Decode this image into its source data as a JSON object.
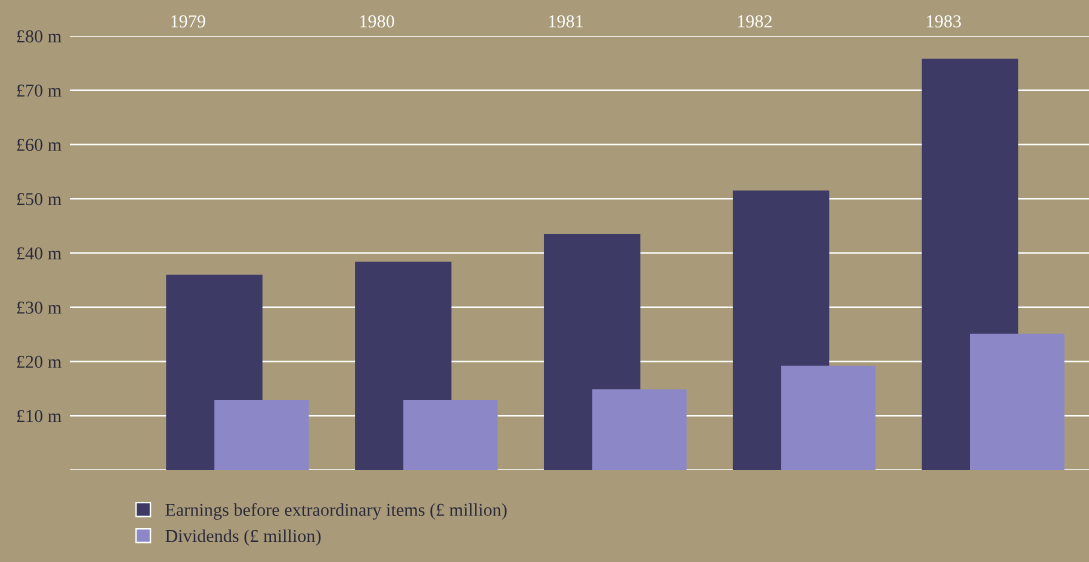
{
  "chart_data": {
    "type": "bar",
    "categories": [
      "1979",
      "1980",
      "1981",
      "1982",
      "1983"
    ],
    "series": [
      {
        "name": "Earnings before extraordinary items (£ million)",
        "color": "#3d3a66",
        "values": [
          36,
          38.4,
          43.5,
          51.5,
          75.8
        ]
      },
      {
        "name": "Dividends (£ million)",
        "color": "#8c88c8",
        "values": [
          12.9,
          12.9,
          14.9,
          19.2,
          25.1
        ]
      }
    ],
    "ylim": [
      0,
      80
    ],
    "yticks": [
      {
        "value": 0,
        "label": null
      },
      {
        "value": 10,
        "label": "£10 m"
      },
      {
        "value": 20,
        "label": "£20 m"
      },
      {
        "value": 30,
        "label": "£30 m"
      },
      {
        "value": 40,
        "label": "£40 m"
      },
      {
        "value": 50,
        "label": "£50 m"
      },
      {
        "value": 60,
        "label": "£60 m"
      },
      {
        "value": 70,
        "label": "£70 m"
      },
      {
        "value": 80,
        "label": "£80 m"
      }
    ],
    "grid": "y",
    "legend": "bottom left"
  }
}
